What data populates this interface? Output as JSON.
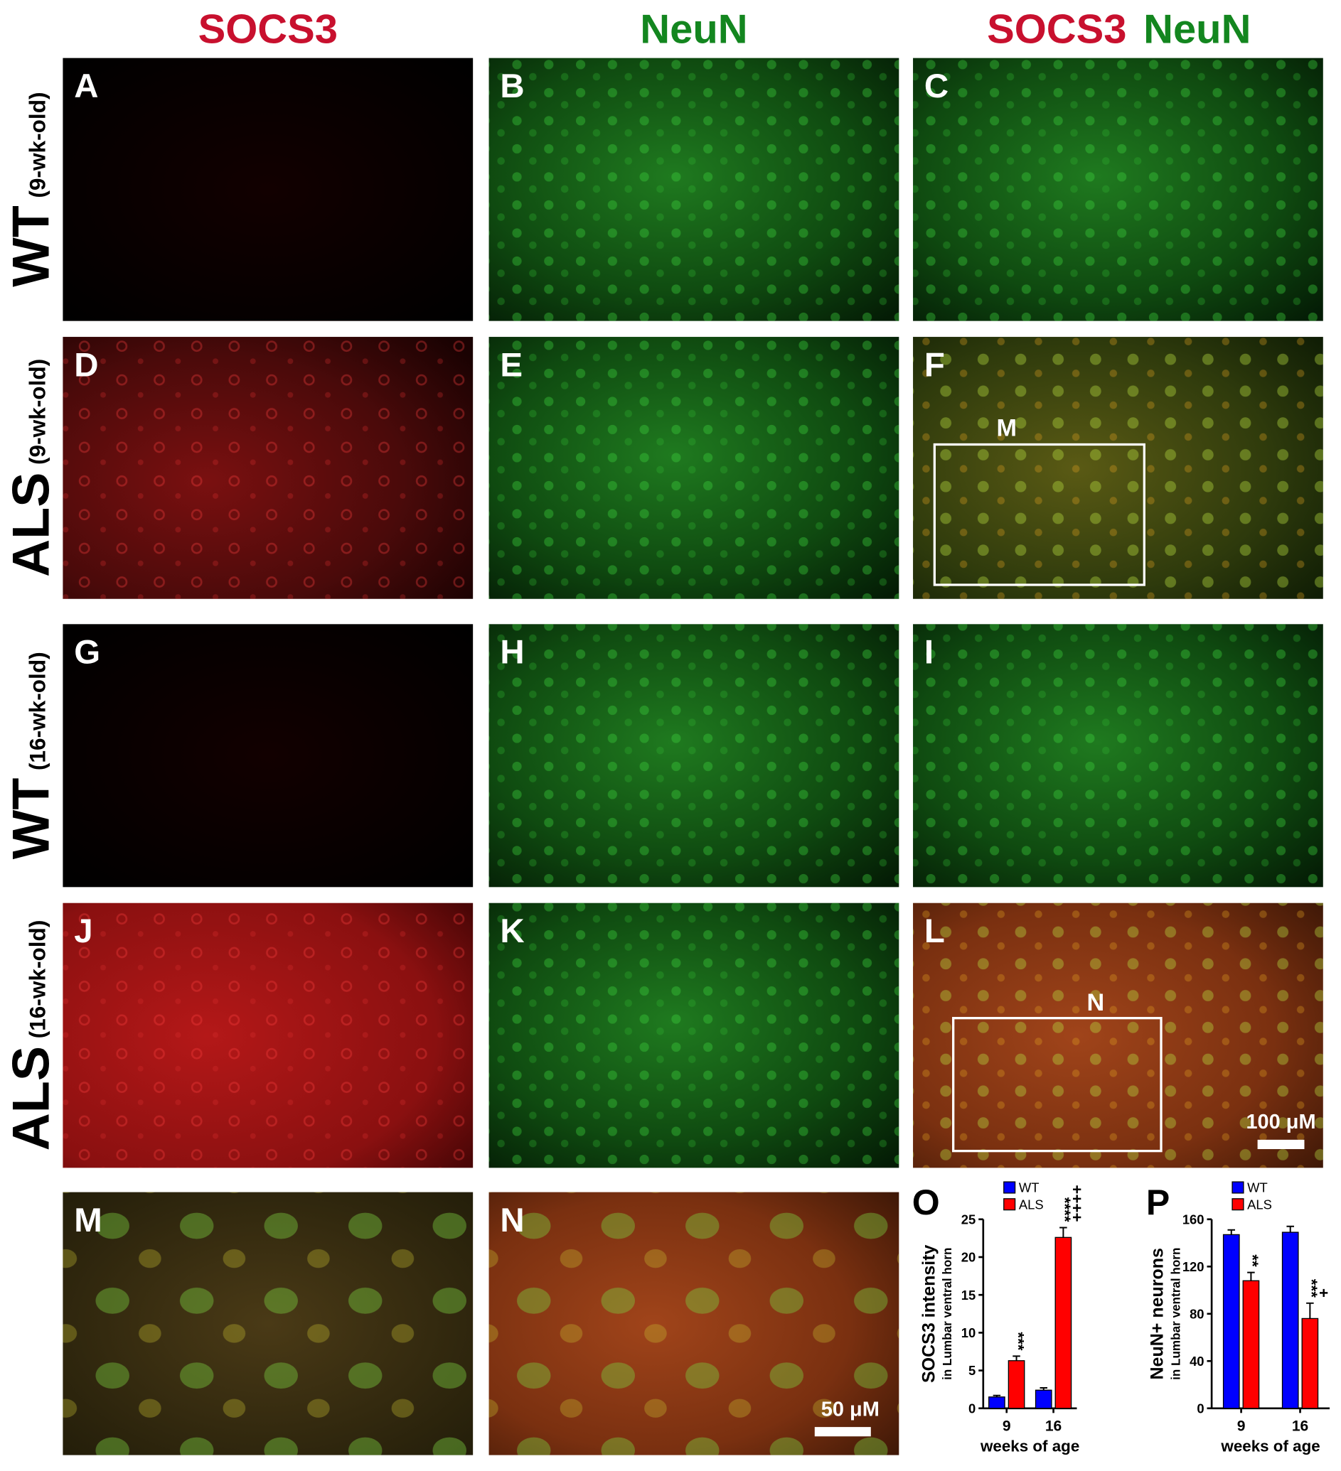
{
  "column_headers": [
    [
      "SOCS3"
    ],
    [
      "NeuN"
    ],
    [
      "SOCS3",
      "NeuN"
    ]
  ],
  "row_labels": [
    {
      "main": "WT",
      "sub": "(9-wk-old)"
    },
    {
      "main": "ALS",
      "sub": "(9-wk-old)"
    },
    {
      "main": "WT",
      "sub": "(16-wk-old)"
    },
    {
      "main": "ALS",
      "sub": "(16-wk-old)"
    }
  ],
  "panels": [
    "A",
    "B",
    "C",
    "D",
    "E",
    "F",
    "G",
    "H",
    "I",
    "J",
    "K",
    "L",
    "M",
    "N"
  ],
  "inset_boxes": [
    "M",
    "N"
  ],
  "scale_bars": [
    "100 μM",
    "50 μM"
  ],
  "chart_data": [
    {
      "type": "bar",
      "panel_label": "O",
      "ylabel": "SOCS3 intensity",
      "ylabel_sub": "in Lumbar ventral horn",
      "xlabel": "weeks of age",
      "categories": [
        "9",
        "16"
      ],
      "series": [
        {
          "name": "WT",
          "color": "#0000ff",
          "values": [
            1.5,
            2.4
          ],
          "errors": [
            0.2,
            0.3
          ]
        },
        {
          "name": "ALS",
          "color": "#ff0000",
          "values": [
            6.3,
            22.6
          ],
          "errors": [
            0.6,
            1.3
          ],
          "annotations": [
            [
              "***"
            ],
            [
              "****",
              "++++"
            ]
          ]
        }
      ],
      "ylim": [
        0,
        25
      ],
      "yticks": [
        0,
        5,
        10,
        15,
        20,
        25
      ]
    },
    {
      "type": "bar",
      "panel_label": "P",
      "ylabel": "NeuN+ neurons",
      "ylabel_sub": "in Lumbar ventral horn",
      "xlabel": "weeks of age",
      "categories": [
        "9",
        "16"
      ],
      "series": [
        {
          "name": "WT",
          "color": "#0000ff",
          "values": [
            147,
            149
          ],
          "errors": [
            4,
            5
          ]
        },
        {
          "name": "ALS",
          "color": "#ff0000",
          "values": [
            108,
            76
          ],
          "errors": [
            7,
            13
          ],
          "annotations": [
            [
              "**"
            ],
            [
              "***",
              "+"
            ]
          ]
        }
      ],
      "ylim": [
        0,
        160
      ],
      "yticks": [
        0,
        40,
        80,
        120,
        160
      ]
    }
  ]
}
